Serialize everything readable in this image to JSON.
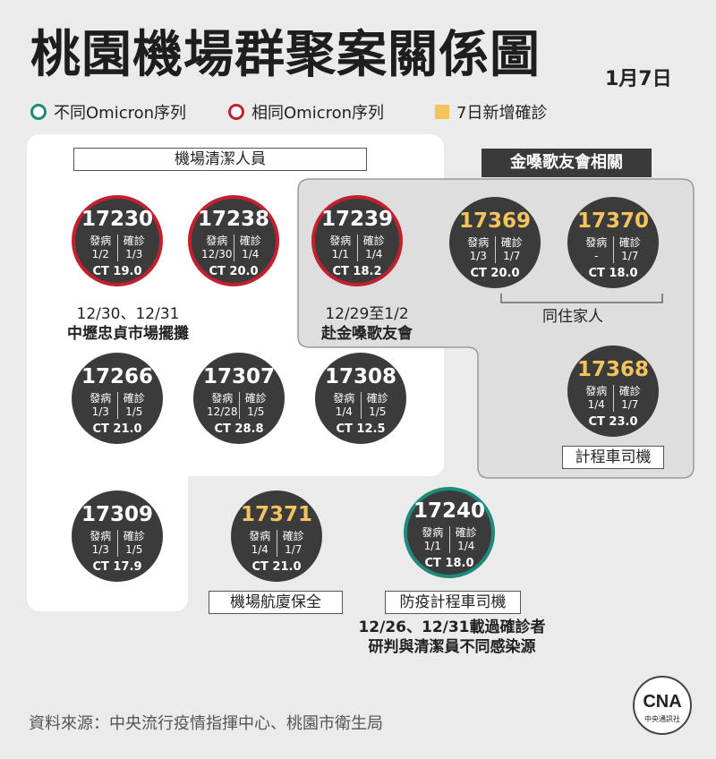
{
  "title": "桃園機場群聚案關係圖",
  "date": "1月7日",
  "legend": {
    "different": "不同Omicron序列",
    "same": "相同Omicron序列",
    "new": "7日新增確診",
    "colors": {
      "different": "#1d8a7a",
      "same": "#c3202f",
      "new": "#f3c35c"
    }
  },
  "groups": {
    "cleaning": "機場清潔人員",
    "choir": "金嗓歌友會相關",
    "household": "同住家人",
    "taxi": "計程車司機",
    "security": "機場航廈保全",
    "quarantine_taxi": "防疫計程車司機"
  },
  "labels": {
    "onset": "發病",
    "confirm": "確診"
  },
  "cases": [
    {
      "id": "17230",
      "onset": "1/2",
      "confirm": "1/3",
      "ct": "CT 19.0"
    },
    {
      "id": "17238",
      "onset": "12/30",
      "confirm": "1/4",
      "ct": "CT 20.0"
    },
    {
      "id": "17239",
      "onset": "1/1",
      "confirm": "1/4",
      "ct": "CT 18.2"
    },
    {
      "id": "17369",
      "onset": "1/3",
      "confirm": "1/7",
      "ct": "CT 20.0"
    },
    {
      "id": "17370",
      "onset": "-",
      "confirm": "1/7",
      "ct": "CT 18.0"
    },
    {
      "id": "17266",
      "onset": "1/3",
      "confirm": "1/5",
      "ct": "CT 21.0"
    },
    {
      "id": "17307",
      "onset": "12/28",
      "confirm": "1/5",
      "ct": "CT 28.8"
    },
    {
      "id": "17308",
      "onset": "1/4",
      "confirm": "1/5",
      "ct": "CT 12.5"
    },
    {
      "id": "17368",
      "onset": "1/4",
      "confirm": "1/7",
      "ct": "CT 23.0"
    },
    {
      "id": "17309",
      "onset": "1/3",
      "confirm": "1/5",
      "ct": "CT 17.9"
    },
    {
      "id": "17371",
      "onset": "1/4",
      "confirm": "1/7",
      "ct": "CT 21.0"
    },
    {
      "id": "17240",
      "onset": "1/1",
      "confirm": "1/4",
      "ct": "CT 18.0"
    }
  ],
  "notes": {
    "n1_line1": "12/30、12/31",
    "n1_line2": "中壢忠貞市場擺攤",
    "n2_line1": "12/29至1/2",
    "n2_line2": "赴金嗓歌友會",
    "n3_line1": "12/26、12/31載過確診者",
    "n3_line2": "研判與清潔員不同感染源"
  },
  "source": "資料來源：中央流行疫情指揮中心、桃園市衛生局",
  "logo": {
    "mark": "CNA",
    "text": "中央通訊社"
  }
}
